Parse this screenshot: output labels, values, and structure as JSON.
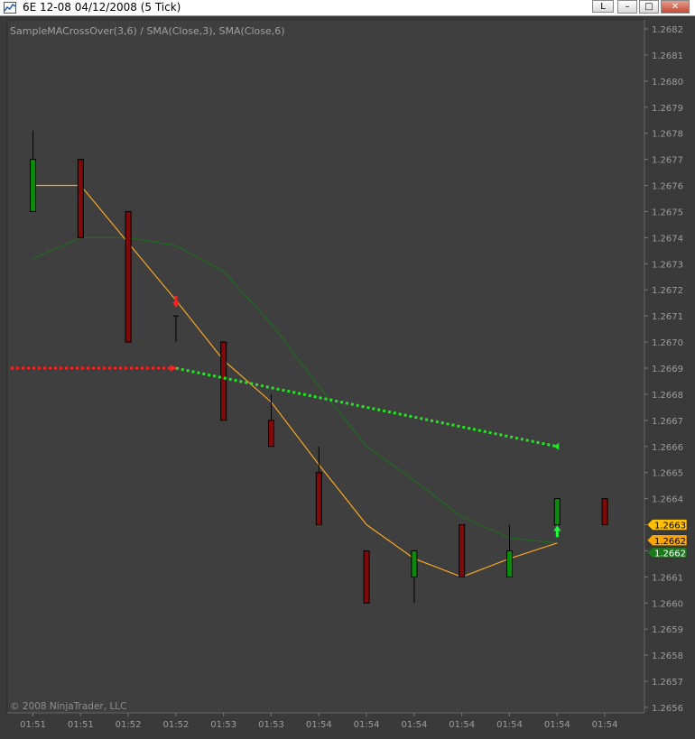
{
  "window": {
    "title": "6E 12-08  04/12/2008 (5 Tick)",
    "btn_l": "L",
    "btn_min": "–",
    "btn_max": "□",
    "btn_close": "✕"
  },
  "chart_data": {
    "type": "candlestick",
    "title": "SampleMACrossOver(3,6) / SMA(Close,3), SMA(Close,6)",
    "copyright": "© 2008 NinjaTrader, LLC",
    "ylim": [
      1.26555,
      1.26825
    ],
    "y_ticks": [
      "1.2682",
      "1.2681",
      "1.2680",
      "1.2679",
      "1.2678",
      "1.2677",
      "1.2676",
      "1.2675",
      "1.2674",
      "1.2673",
      "1.2672",
      "1.2671",
      "1.2670",
      "1.2669",
      "1.2668",
      "1.2667",
      "1.2666",
      "1.2665",
      "1.2664",
      "1.2663",
      "1.2662",
      "1.2661",
      "1.2660",
      "1.2659",
      "1.2658",
      "1.2657",
      "1.2656"
    ],
    "x_labels": [
      "01:51",
      "01:51",
      "01:52",
      "01:52",
      "01:53",
      "01:53",
      "01:54",
      "01:54",
      "01:54",
      "01:54",
      "01:54",
      "01:54",
      "01:54"
    ],
    "bars": [
      {
        "o": 1.2675,
        "h": 1.26781,
        "l": 1.2675,
        "c": 1.2677
      },
      {
        "o": 1.2677,
        "h": 1.2677,
        "l": 1.2674,
        "c": 1.2674
      },
      {
        "o": 1.2675,
        "h": 1.2675,
        "l": 1.267,
        "c": 1.267
      },
      {
        "o": 1.2671,
        "h": 1.2671,
        "l": 1.267,
        "c": 1.2671
      },
      {
        "o": 1.267,
        "h": 1.267,
        "l": 1.2667,
        "c": 1.2667
      },
      {
        "o": 1.2667,
        "h": 1.2668,
        "l": 1.2666,
        "c": 1.2666
      },
      {
        "o": 1.2665,
        "h": 1.2666,
        "l": 1.2663,
        "c": 1.2663
      },
      {
        "o": 1.2662,
        "h": 1.2662,
        "l": 1.266,
        "c": 1.266
      },
      {
        "o": 1.2661,
        "h": 1.2662,
        "l": 1.266,
        "c": 1.2662
      },
      {
        "o": 1.2663,
        "h": 1.2663,
        "l": 1.2661,
        "c": 1.2661
      },
      {
        "o": 1.2661,
        "h": 1.2663,
        "l": 1.2661,
        "c": 1.2662
      },
      {
        "o": 1.2663,
        "h": 1.2664,
        "l": 1.2663,
        "c": 1.2664
      },
      {
        "o": 1.2664,
        "h": 1.2664,
        "l": 1.2663,
        "c": 1.2663
      }
    ],
    "sma3": [
      1.2676,
      1.2676,
      1.26738,
      1.26716,
      1.26693,
      1.26677,
      1.26653,
      1.2663,
      1.26617,
      1.2661,
      1.26617,
      1.26623
    ],
    "sma6": [
      1.26732,
      1.2674,
      1.2674,
      1.26737,
      1.26727,
      1.26707,
      1.26683,
      1.2666,
      1.26647,
      1.26633,
      1.26625,
      1.26623
    ],
    "signal_red": [
      {
        "x": 0,
        "y": 1.2669
      },
      {
        "x": 3,
        "y": 1.2669
      }
    ],
    "signal_green": [
      {
        "x": 3,
        "y": 1.2669
      },
      {
        "x": 11,
        "y": 1.2666
      }
    ],
    "markers": [
      {
        "bar": 3,
        "y": 1.26715,
        "dir": "down",
        "color": "#ff1f1f"
      },
      {
        "bar": 11,
        "y": 1.26628,
        "dir": "up",
        "color": "#19ff3a"
      }
    ],
    "price_tags": [
      {
        "label": "1.2663",
        "value": 1.2663,
        "color": "#ffc000",
        "text_color": "#000"
      },
      {
        "label": "1.2662",
        "value": 1.26623,
        "color": "#ffa500",
        "text_color": "#000"
      },
      {
        "label": "1.2662",
        "value": 1.2662,
        "color": "#1c7a1c",
        "text_color": "#fff"
      }
    ],
    "colors": {
      "up": "#0d8a0d",
      "down": "#7e0a0a",
      "sma3": "#f5a623",
      "sma6": "#1e6b1e",
      "grid": "#5a5a5a",
      "bg": "#3f3f3f",
      "text": "#9c9c9c"
    }
  }
}
